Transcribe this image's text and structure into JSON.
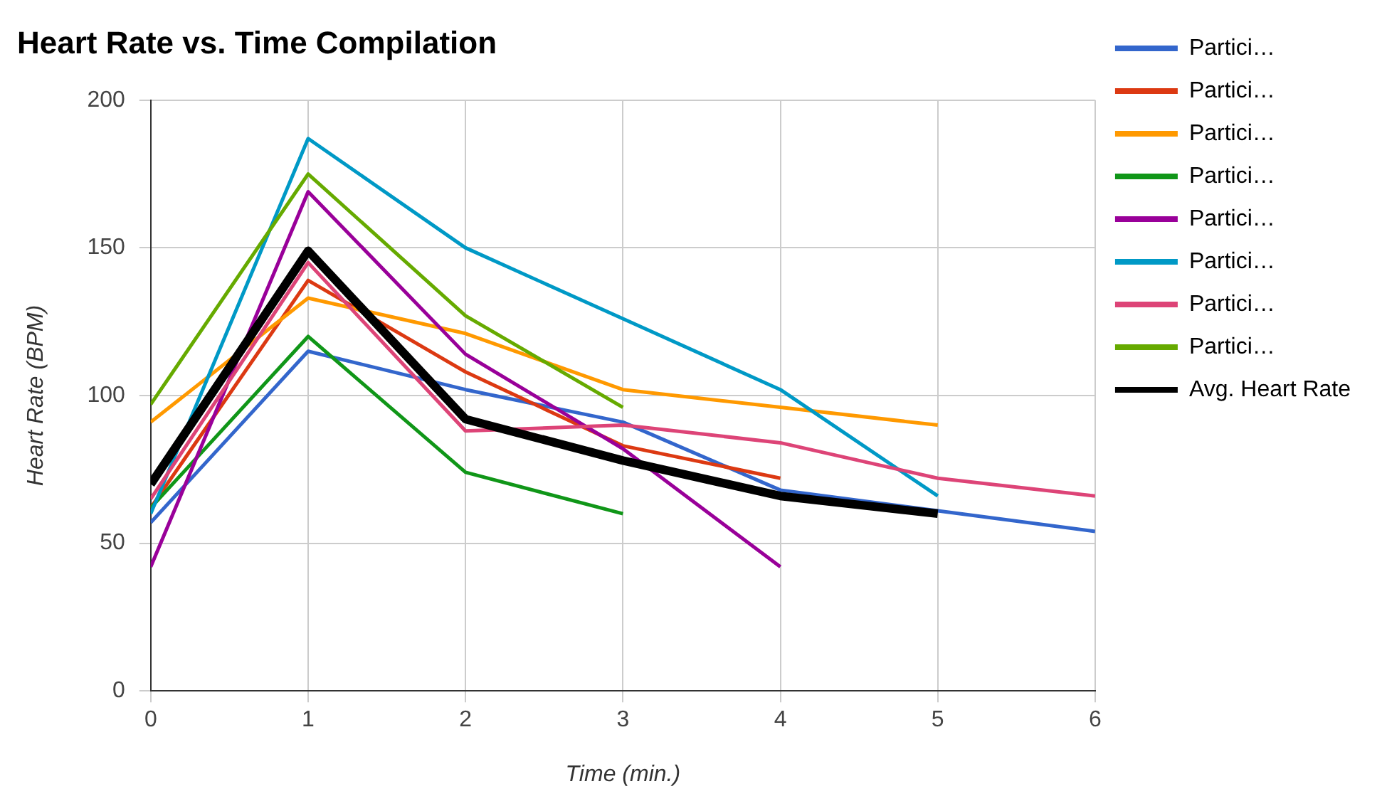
{
  "chart_data": {
    "type": "line",
    "title": "Heart Rate vs. Time Compilation",
    "xlabel": "Time (min.)",
    "ylabel": "Heart Rate (BPM)",
    "x": [
      0,
      1,
      2,
      3,
      4,
      5,
      6
    ],
    "series": [
      {
        "name": "Partici…",
        "color": "#3366cc",
        "values": [
          57,
          115,
          102,
          91,
          68,
          61,
          54
        ]
      },
      {
        "name": "Partici…",
        "color": "#dc3912",
        "values": [
          62,
          139,
          108,
          83,
          72,
          null,
          null
        ]
      },
      {
        "name": "Partici…",
        "color": "#ff9900",
        "values": [
          91,
          133,
          121,
          102,
          96,
          90,
          null
        ]
      },
      {
        "name": "Partici…",
        "color": "#109618",
        "values": [
          62,
          120,
          74,
          60,
          null,
          null,
          null
        ]
      },
      {
        "name": "Partici…",
        "color": "#990099",
        "values": [
          42,
          169,
          114,
          82,
          42,
          null,
          null
        ]
      },
      {
        "name": "Partici…",
        "color": "#0099c6",
        "values": [
          60,
          187,
          150,
          126,
          102,
          66,
          null
        ]
      },
      {
        "name": "Partici…",
        "color": "#dd4477",
        "values": [
          65,
          145,
          88,
          90,
          84,
          72,
          66
        ]
      },
      {
        "name": "Partici…",
        "color": "#66aa00",
        "values": [
          97,
          175,
          127,
          96,
          null,
          null,
          null
        ]
      },
      {
        "name": "Avg. Heart Rate",
        "color": "#000000",
        "values": [
          70,
          149,
          92,
          78,
          66,
          60,
          null
        ]
      }
    ],
    "xlim": [
      0,
      6
    ],
    "xticks": [
      0,
      1,
      2,
      3,
      4,
      5,
      6
    ],
    "ylim": [
      0,
      200
    ],
    "yticks": [
      0,
      50,
      100,
      150,
      200
    ],
    "grid": true,
    "legend": "right",
    "marker": "none",
    "line_style": "solid"
  }
}
